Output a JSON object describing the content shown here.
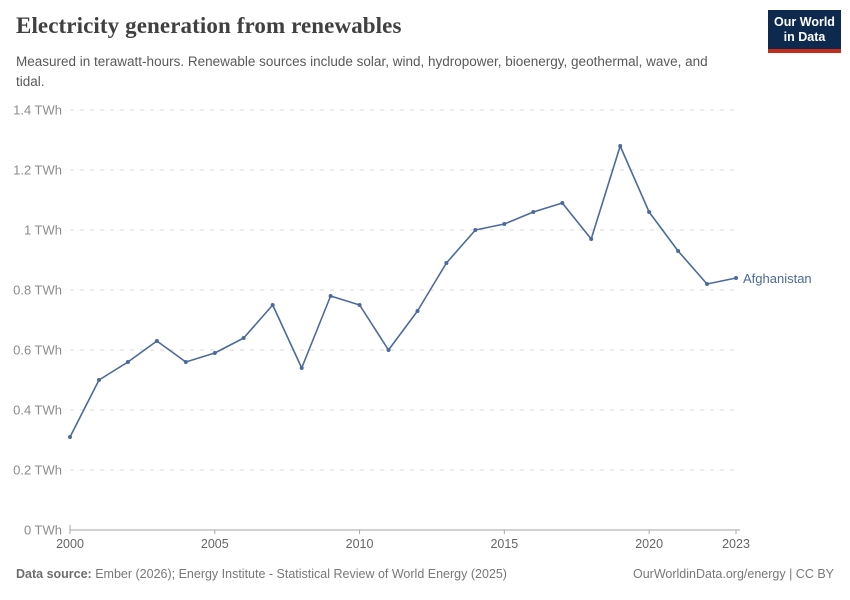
{
  "header": {
    "title": "Electricity generation from renewables",
    "subtitle": "Measured in terawatt-hours. Renewable sources include solar, wind, hydropower, bioenergy, geothermal, wave, and tidal."
  },
  "logo": {
    "line1": "Our World",
    "line2": "in Data",
    "bg_color": "#0d2a4e",
    "bar_color": "#c52c1c"
  },
  "chart_data": {
    "type": "line",
    "x": [
      2000,
      2001,
      2002,
      2003,
      2004,
      2005,
      2006,
      2007,
      2008,
      2009,
      2010,
      2011,
      2012,
      2013,
      2014,
      2015,
      2016,
      2017,
      2018,
      2019,
      2020,
      2021,
      2022,
      2023
    ],
    "series": [
      {
        "name": "Afghanistan",
        "color": "#4c6a9c",
        "values": [
          0.31,
          0.5,
          0.56,
          0.63,
          0.56,
          0.59,
          0.64,
          0.75,
          0.54,
          0.78,
          0.75,
          0.6,
          0.73,
          0.89,
          1.0,
          1.02,
          1.06,
          1.09,
          0.97,
          1.28,
          1.06,
          0.93,
          0.82,
          0.84
        ]
      }
    ],
    "title": "Electricity generation from renewables",
    "xlabel": "",
    "ylabel": "",
    "unit": "TWh",
    "ylim": [
      0,
      1.4
    ],
    "y_ticks": [
      0,
      0.2,
      0.4,
      0.6,
      0.8,
      1,
      1.2,
      1.4
    ],
    "x_ticks": [
      2000,
      2005,
      2010,
      2015,
      2020,
      2023
    ],
    "grid": "horizontal-dashed",
    "legend_position": "end-of-line-label"
  },
  "footer": {
    "source_label": "Data source:",
    "source_text": " Ember (2026); Energy Institute - Statistical Review of World Energy (2025)",
    "credit": "OurWorldinData.org/energy | CC BY"
  },
  "colors": {
    "line": "#4c6a9c",
    "gridline": "#dadada",
    "axis": "#a5a5a5",
    "y_tick_label": "#8c8c8c",
    "x_tick_label": "#666666",
    "title": "#404040",
    "subtitle": "#595959",
    "footer": "#787878"
  }
}
